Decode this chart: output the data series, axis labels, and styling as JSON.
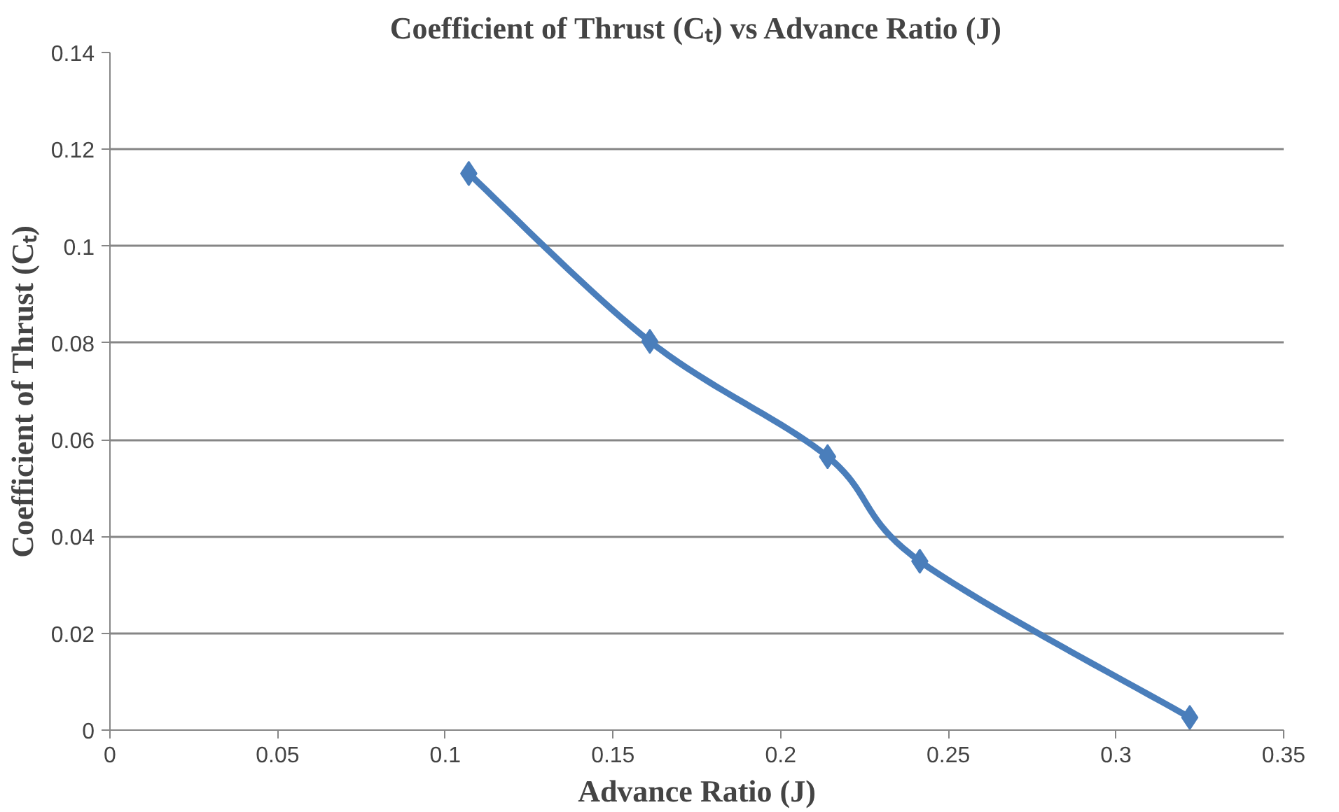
{
  "chart_data": {
    "type": "line",
    "title": "Coefficient of Thrust (Cₜ) vs Advance Ratio (J)",
    "xlabel": "Advance Ratio (J)",
    "ylabel": "Coefficient of Thrust (Cₜ)",
    "x": [
      0.107,
      0.161,
      0.214,
      0.2415,
      0.322
    ],
    "series": [
      {
        "color": "#4a7ebb",
        "values": [
          0.115,
          0.0803,
          0.0565,
          0.0349,
          0.0026
        ]
      }
    ],
    "xlim": [
      0,
      0.35
    ],
    "xticks": [
      0,
      0.05,
      0.1,
      0.15,
      0.2,
      0.25,
      0.3,
      0.35
    ],
    "ylim": [
      0,
      0.14
    ],
    "yticks": [
      0,
      0.02,
      0.04,
      0.06,
      0.08,
      0.1,
      0.12,
      0.14
    ],
    "grid": "y",
    "marker": "diamond",
    "line_style": "solid"
  }
}
